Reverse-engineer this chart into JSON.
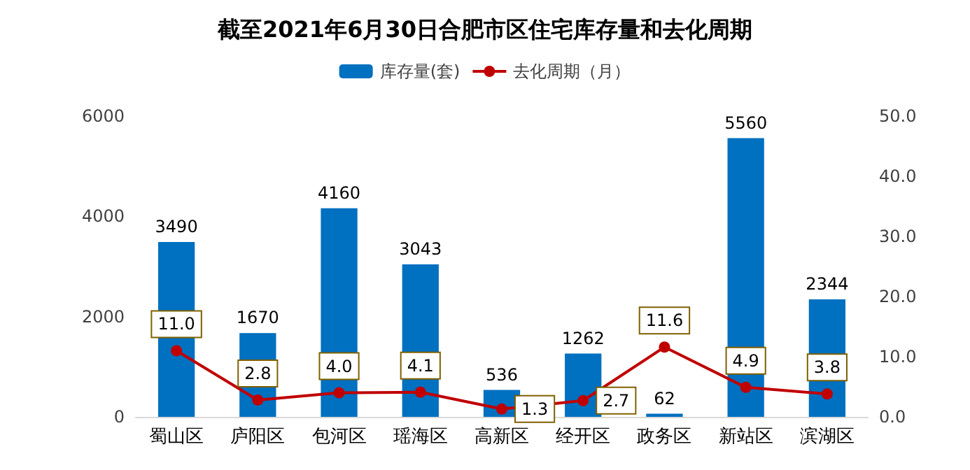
{
  "chart_data": {
    "type": "bar",
    "title": "截至2021年6月30日合肥市区住宅库存量和去化周期",
    "categories": [
      "蜀山区",
      "庐阳区",
      "包河区",
      "瑶海区",
      "高新区",
      "经开区",
      "政务区",
      "新站区",
      "滨湖区"
    ],
    "series": [
      {
        "name": "库存量(套)",
        "color": "#0070c0",
        "values": [
          3490,
          1670,
          4160,
          3043,
          536,
          1262,
          62,
          5560,
          2344
        ]
      },
      {
        "name": "去化周期（月）",
        "type": "line",
        "axis": "y2",
        "color": "#c00000",
        "marker": "circle",
        "values": [
          11.0,
          2.8,
          4.0,
          4.1,
          1.3,
          2.7,
          11.6,
          4.9,
          3.8
        ],
        "value_labels": [
          "11.0",
          "2.8",
          "4.0",
          "4.1",
          "1.3",
          "2.7",
          "11.6",
          "4.9",
          "3.8"
        ]
      }
    ],
    "data_labels": true,
    "ylim": [
      0,
      6000
    ],
    "yticks": [
      0,
      2000,
      4000,
      6000
    ],
    "y2lim": [
      0,
      50
    ],
    "y2ticks": [
      {
        "value": 0,
        "label": "0.0"
      },
      {
        "value": 10,
        "label": "10.0"
      },
      {
        "value": 20,
        "label": "20.0"
      },
      {
        "value": 30,
        "label": "30.0"
      },
      {
        "value": 40,
        "label": "40.0"
      },
      {
        "value": 50,
        "label": "50.0"
      }
    ],
    "grid": false,
    "legend": "top"
  }
}
